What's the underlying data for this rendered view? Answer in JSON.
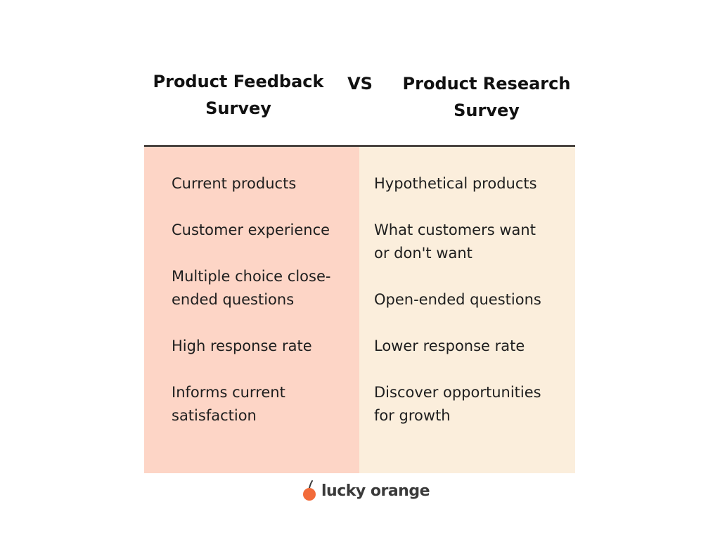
{
  "comparison": {
    "left_heading": "Product Feedback\nSurvey",
    "vs_label": "VS",
    "right_heading": "Product Research\nSurvey",
    "left_items": [
      "Current products",
      "Customer experience",
      "Multiple choice close-\nended questions",
      "High response rate",
      "Informs current\nsatisfaction"
    ],
    "right_items": [
      "Hypothetical products",
      "What customers want\nor don't want",
      "Open-ended questions",
      "Lower response rate",
      "Discover opportunities\nfor growth"
    ]
  },
  "logo": {
    "text": "lucky orange",
    "icon": "orange-fruit-icon"
  },
  "colors": {
    "left_column_bg": "#fdd5c6",
    "right_column_bg": "#fbeedc",
    "divider": "#4a4440",
    "logo_orange": "#f26b3a"
  }
}
